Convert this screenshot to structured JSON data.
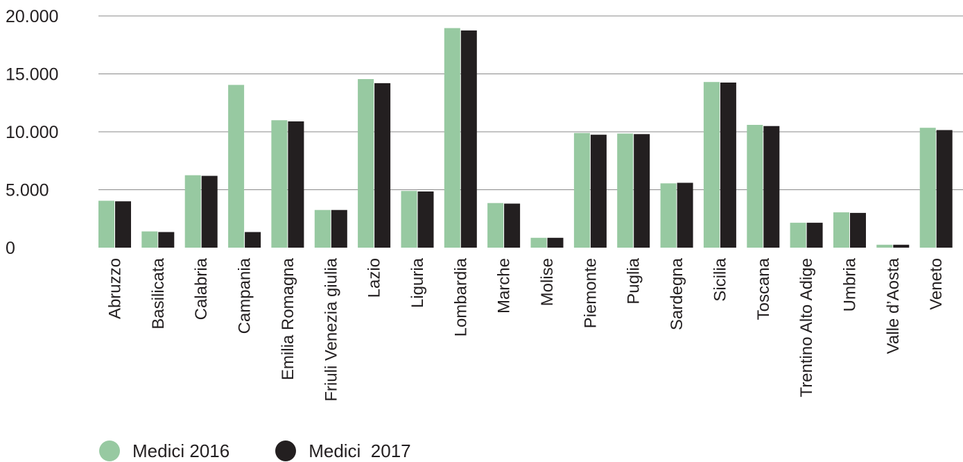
{
  "chart_data": {
    "type": "bar",
    "title": "",
    "xlabel": "",
    "ylabel": "",
    "ylim": [
      0,
      20000
    ],
    "y_ticks": [
      "0",
      "5.000",
      "10.000",
      "15.000",
      "20.000"
    ],
    "y_tick_values": [
      0,
      5000,
      10000,
      15000,
      20000
    ],
    "grid": true,
    "legend_position": "bottom-left",
    "categories": [
      "Abruzzo",
      "Basilicata",
      "Calabria",
      "Campania",
      "Emilia Romagna",
      "Friuli Venezia giulia",
      "Lazio",
      "Liguria",
      "Lombardia",
      "Marche",
      "Molise",
      "Piemonte",
      "Puglia",
      "Sardegna",
      "Sicilia",
      "Toscana",
      "Trentino Alto Adige",
      "Umbria",
      "Valle d’Aosta",
      "Veneto"
    ],
    "series": [
      {
        "name": "Medici 2016",
        "color": "#97c9a1",
        "values": [
          4050,
          1400,
          6250,
          14050,
          11000,
          3250,
          14550,
          4900,
          18950,
          3850,
          850,
          9900,
          9850,
          5550,
          14300,
          10600,
          2150,
          3050,
          250,
          10350
        ]
      },
      {
        "name": "Medici  2017",
        "color": "#231f20",
        "values": [
          4000,
          1350,
          6200,
          1350,
          10900,
          3250,
          14200,
          4850,
          18750,
          3800,
          850,
          9750,
          9800,
          5600,
          14250,
          10500,
          2150,
          3000,
          250,
          10150
        ]
      }
    ]
  }
}
